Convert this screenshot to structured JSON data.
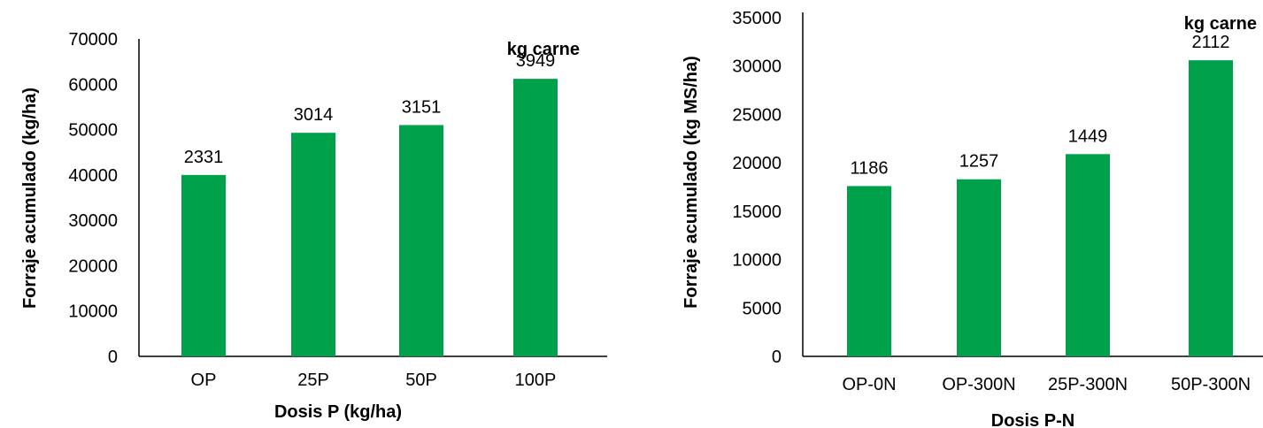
{
  "colors": {
    "bar": "#00a14b",
    "axis": "#000000"
  },
  "chart_data": [
    {
      "type": "bar",
      "categories": [
        "OP",
        "25P",
        "50P",
        "100P"
      ],
      "values": [
        40000,
        49300,
        51000,
        61200
      ],
      "data_labels": [
        "2331",
        "3014",
        "3151",
        "3949"
      ],
      "annotation": "kg carne",
      "xlabel": "Dosis P (kg/ha)",
      "ylabel": "Forraje acumulado (kg/ha)",
      "ylim": [
        0,
        70000
      ],
      "yticks": [
        "0",
        "10000",
        "20000",
        "30000",
        "40000",
        "50000",
        "60000",
        "70000"
      ],
      "grid": false
    },
    {
      "type": "bar",
      "categories": [
        "OP-0N",
        "OP-300N",
        "25P-300N",
        "50P-300N"
      ],
      "values": [
        17600,
        18300,
        20900,
        30600
      ],
      "data_labels": [
        "1186",
        "1257",
        "1449",
        "2112"
      ],
      "annotation": "kg carne",
      "xlabel": "Dosis P-N",
      "ylabel": "Forraje acumulado (kg MS/ha)",
      "ylim": [
        0,
        35000
      ],
      "yticks": [
        "0",
        "5000",
        "10000",
        "15000",
        "20000",
        "25000",
        "30000",
        "35000"
      ],
      "grid": false
    }
  ]
}
